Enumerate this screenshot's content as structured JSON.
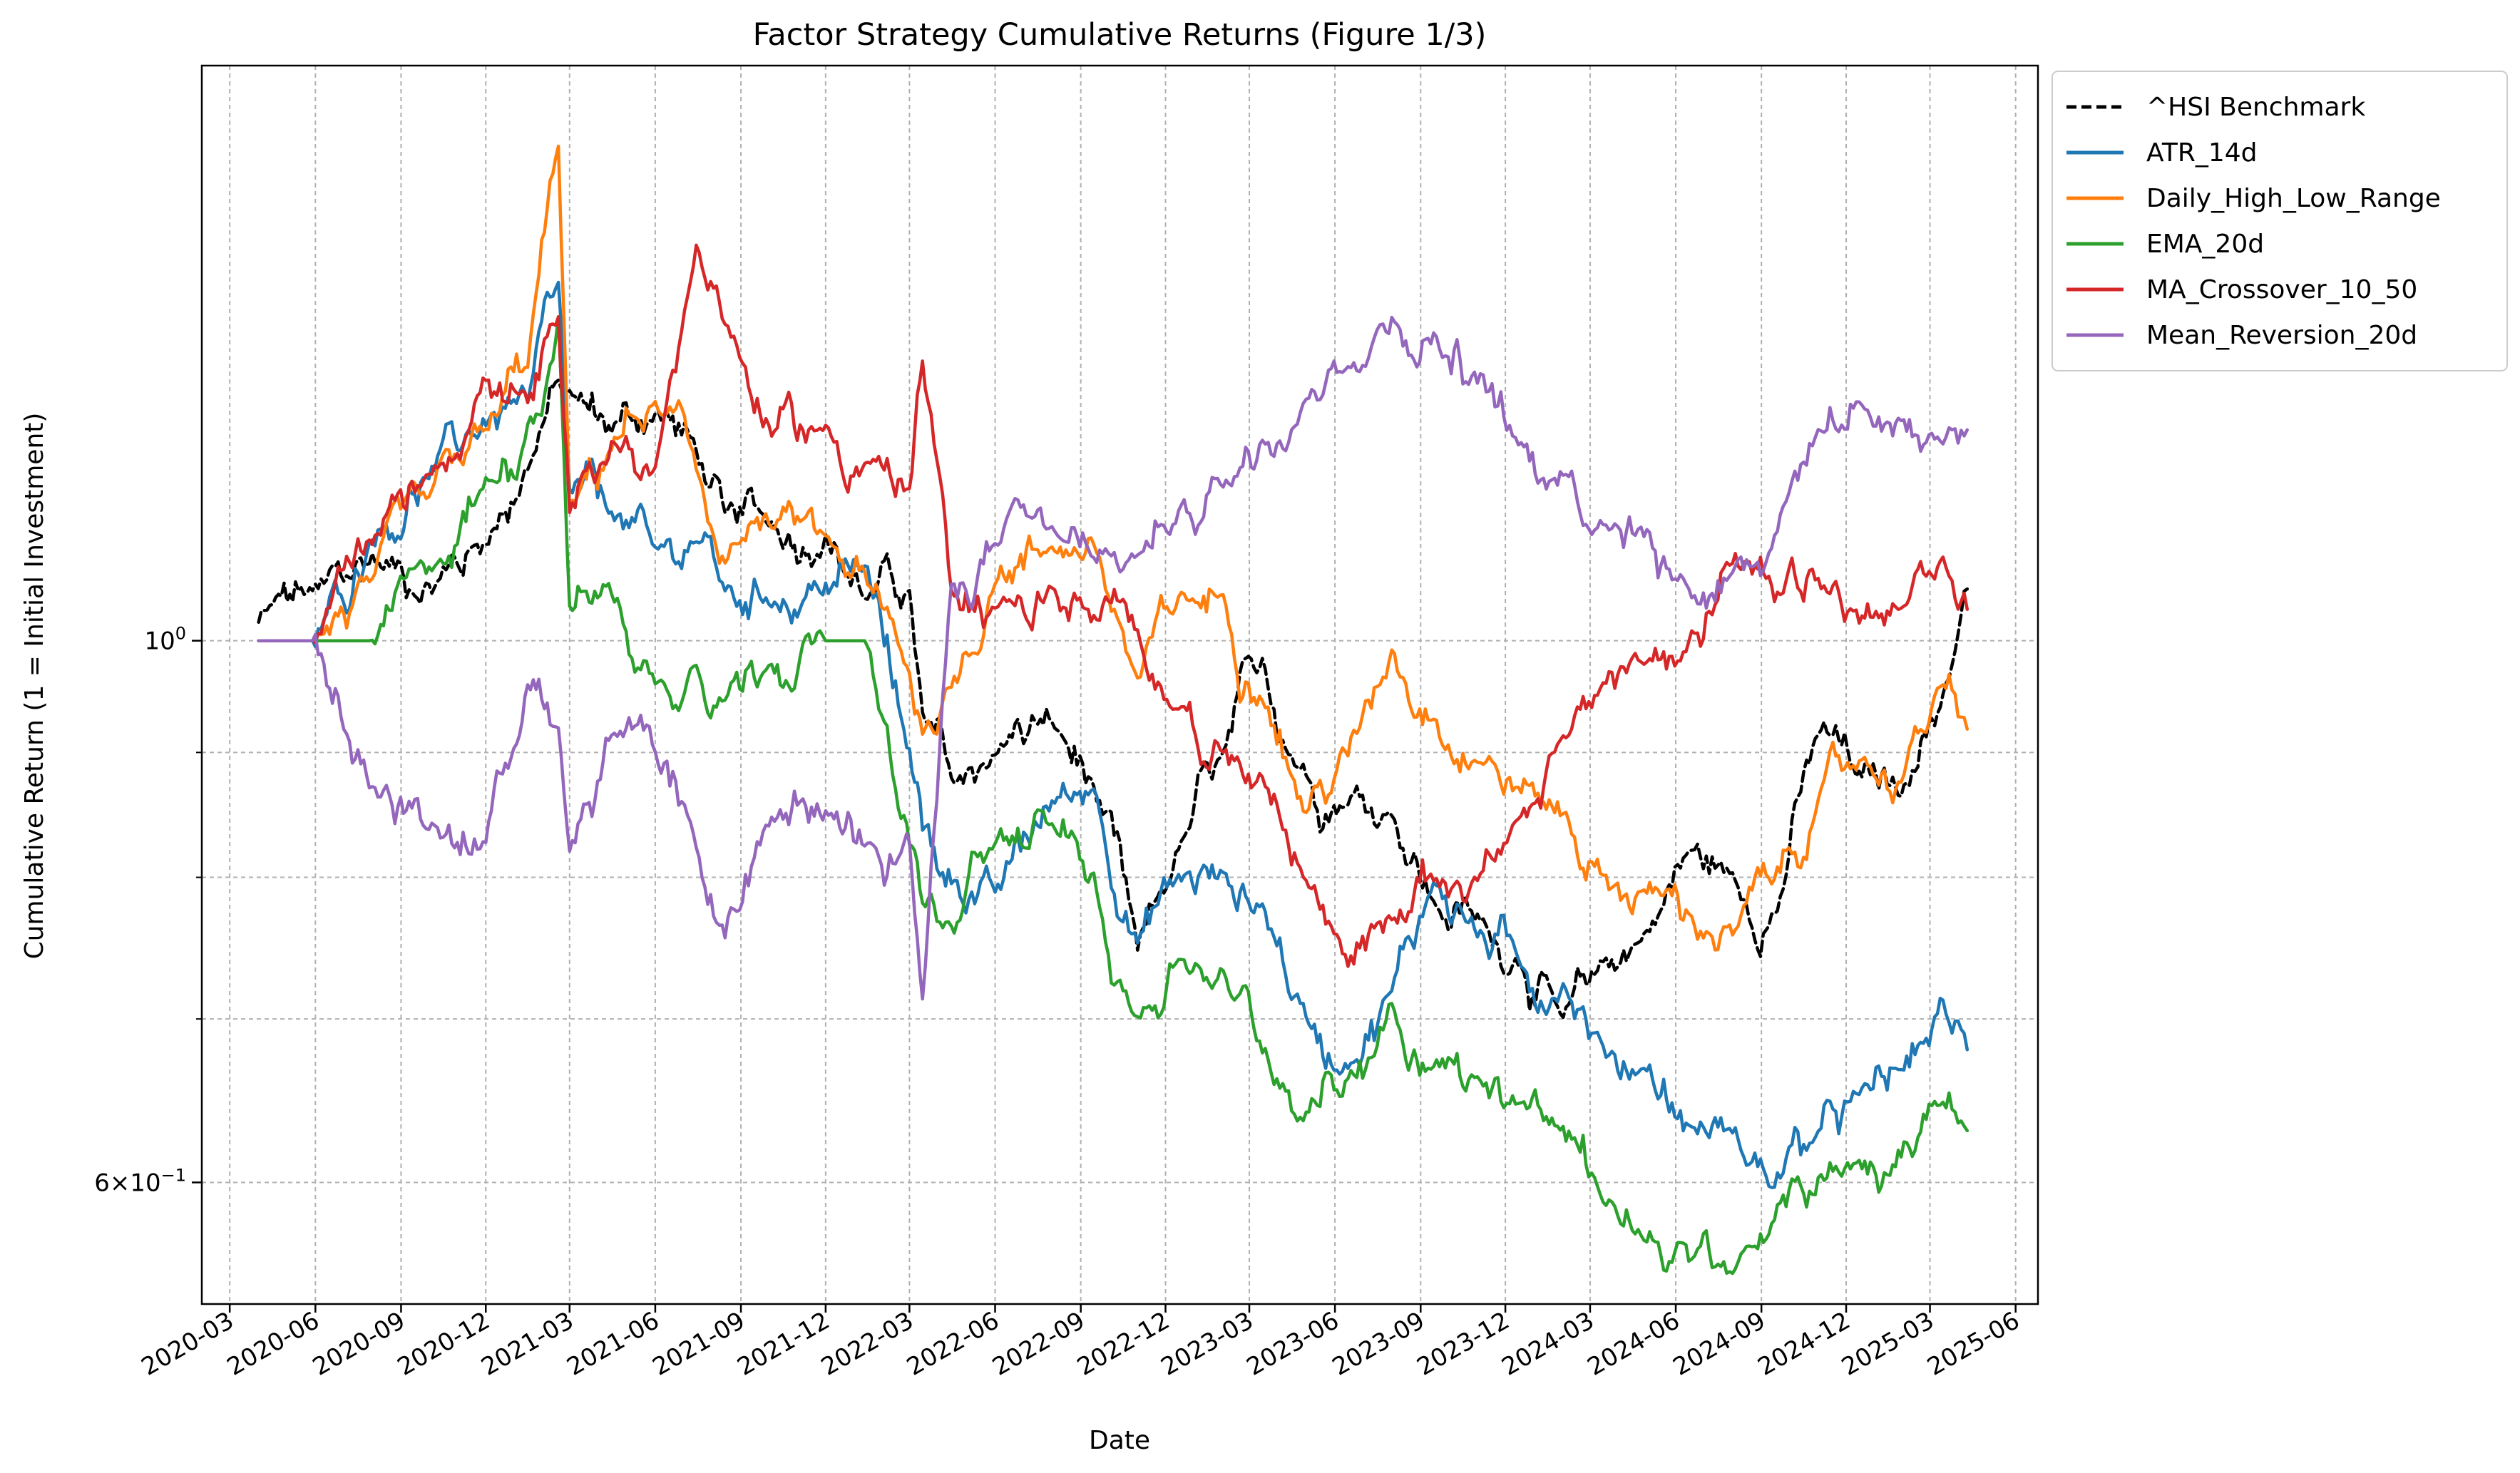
{
  "chart_data": {
    "type": "line",
    "title": "Factor Strategy Cumulative Returns (Figure 1/3)",
    "xlabel": "Date",
    "ylabel": "Cumulative Return (1 = Initial Investment)",
    "yscale": "log",
    "ylim": [
      0.535,
      1.72
    ],
    "xlim": [
      "2020-01-31",
      "2025-06-25"
    ],
    "grid": true,
    "legend_position": "outside-top-right",
    "x_ticks": [
      "2020-03",
      "2020-06",
      "2020-09",
      "2020-12",
      "2021-03",
      "2021-06",
      "2021-09",
      "2021-12",
      "2022-03",
      "2022-06",
      "2022-09",
      "2022-12",
      "2023-03",
      "2023-06",
      "2023-09",
      "2023-12",
      "2024-03",
      "2024-06",
      "2024-09",
      "2024-12",
      "2025-03",
      "2025-06"
    ],
    "y_ticks": [
      {
        "value": 1.0,
        "base": "10",
        "exp": "0"
      },
      {
        "value": 0.6,
        "coef": "6",
        "base": "10",
        "exp": "−1"
      }
    ],
    "y_minor_ticks": [
      0.7,
      0.8,
      0.9
    ],
    "x": [
      "2020-04-01",
      "2020-06-01",
      "2020-08-01",
      "2020-10-01",
      "2020-12-01",
      "2021-01-15",
      "2021-02-17",
      "2021-03-01",
      "2021-04-15",
      "2021-06-01",
      "2021-07-15",
      "2021-08-15",
      "2021-10-01",
      "2021-12-01",
      "2022-01-15",
      "2022-03-01",
      "2022-03-15",
      "2022-04-15",
      "2022-06-01",
      "2022-08-01",
      "2022-09-15",
      "2022-11-01",
      "2022-12-15",
      "2023-02-01",
      "2023-03-15",
      "2023-05-01",
      "2023-06-15",
      "2023-08-01",
      "2023-09-15",
      "2023-11-01",
      "2023-12-15",
      "2024-02-01",
      "2024-03-15",
      "2024-05-01",
      "2024-06-15",
      "2024-08-01",
      "2024-09-15",
      "2024-11-01",
      "2024-12-15",
      "2025-02-01",
      "2025-03-15",
      "2025-04-10"
    ],
    "series": [
      {
        "name": "^HSI Benchmark",
        "color": "#000000",
        "dashed": true,
        "values": [
          1.02,
          1.05,
          1.08,
          1.05,
          1.1,
          1.18,
          1.28,
          1.26,
          1.22,
          1.24,
          1.2,
          1.13,
          1.12,
          1.1,
          1.04,
          1.05,
          0.93,
          0.88,
          0.9,
          0.93,
          0.87,
          0.75,
          0.82,
          0.9,
          0.98,
          0.88,
          0.86,
          0.85,
          0.78,
          0.77,
          0.74,
          0.7,
          0.74,
          0.76,
          0.82,
          0.8,
          0.77,
          0.92,
          0.88,
          0.87,
          0.95,
          1.05
        ]
      },
      {
        "name": "ATR_14d",
        "color": "#1f77b4",
        "dashed": false,
        "values": [
          1.0,
          1.0,
          1.1,
          1.17,
          1.23,
          1.26,
          1.4,
          1.15,
          1.13,
          1.09,
          1.1,
          1.05,
          1.04,
          1.05,
          1.07,
          0.9,
          0.84,
          0.8,
          0.79,
          0.86,
          0.87,
          0.75,
          0.8,
          0.8,
          0.78,
          0.7,
          0.67,
          0.72,
          0.8,
          0.76,
          0.74,
          0.72,
          0.68,
          0.67,
          0.63,
          0.63,
          0.6,
          0.63,
          0.65,
          0.67,
          0.71,
          0.68
        ]
      },
      {
        "name": "Daily_High_Low_Range",
        "color": "#ff7f0e",
        "dashed": false,
        "values": [
          1.0,
          1.0,
          1.06,
          1.15,
          1.22,
          1.3,
          1.6,
          1.13,
          1.2,
          1.25,
          1.18,
          1.08,
          1.12,
          1.1,
          1.06,
          0.97,
          0.92,
          0.96,
          1.06,
          1.09,
          1.1,
          0.96,
          1.04,
          1.04,
          0.95,
          0.85,
          0.9,
          0.99,
          0.93,
          0.89,
          0.87,
          0.85,
          0.8,
          0.79,
          0.77,
          0.76,
          0.8,
          0.86,
          0.89,
          0.88,
          0.96,
          0.92
        ]
      },
      {
        "name": "EMA_20d",
        "color": "#2ca02c",
        "dashed": false,
        "values": [
          1.0,
          1.0,
          1.0,
          1.07,
          1.16,
          1.22,
          1.35,
          1.03,
          1.05,
          0.96,
          0.98,
          0.95,
          0.98,
          1.0,
          1.0,
          0.83,
          0.78,
          0.76,
          0.83,
          0.84,
          0.8,
          0.7,
          0.74,
          0.73,
          0.68,
          0.64,
          0.66,
          0.71,
          0.67,
          0.66,
          0.65,
          0.63,
          0.59,
          0.57,
          0.56,
          0.55,
          0.58,
          0.6,
          0.61,
          0.62,
          0.65,
          0.63
        ]
      },
      {
        "name": "MA_Crossover_10_50",
        "color": "#d62728",
        "dashed": false,
        "values": [
          1.0,
          1.0,
          1.1,
          1.17,
          1.28,
          1.25,
          1.35,
          1.13,
          1.2,
          1.18,
          1.45,
          1.35,
          1.22,
          1.22,
          1.18,
          1.15,
          1.3,
          1.05,
          1.03,
          1.05,
          1.02,
          1.01,
          0.94,
          0.9,
          0.88,
          0.8,
          0.74,
          0.77,
          0.8,
          0.8,
          0.85,
          0.91,
          0.96,
          0.98,
          1.0,
          1.08,
          1.04,
          1.06,
          1.02,
          1.03,
          1.08,
          1.03
        ]
      },
      {
        "name": "Mean_Reversion_20d",
        "color": "#9467bd",
        "dashed": false,
        "values": [
          1.0,
          1.0,
          0.87,
          0.84,
          0.83,
          0.96,
          0.92,
          0.82,
          0.92,
          0.9,
          0.82,
          0.76,
          0.84,
          0.85,
          0.83,
          0.83,
          0.71,
          1.05,
          1.1,
          1.11,
          1.08,
          1.08,
          1.13,
          1.16,
          1.21,
          1.26,
          1.3,
          1.35,
          1.33,
          1.28,
          1.2,
          1.17,
          1.12,
          1.11,
          1.05,
          1.07,
          1.1,
          1.22,
          1.25,
          1.23,
          1.21,
          1.22
        ]
      }
    ]
  }
}
